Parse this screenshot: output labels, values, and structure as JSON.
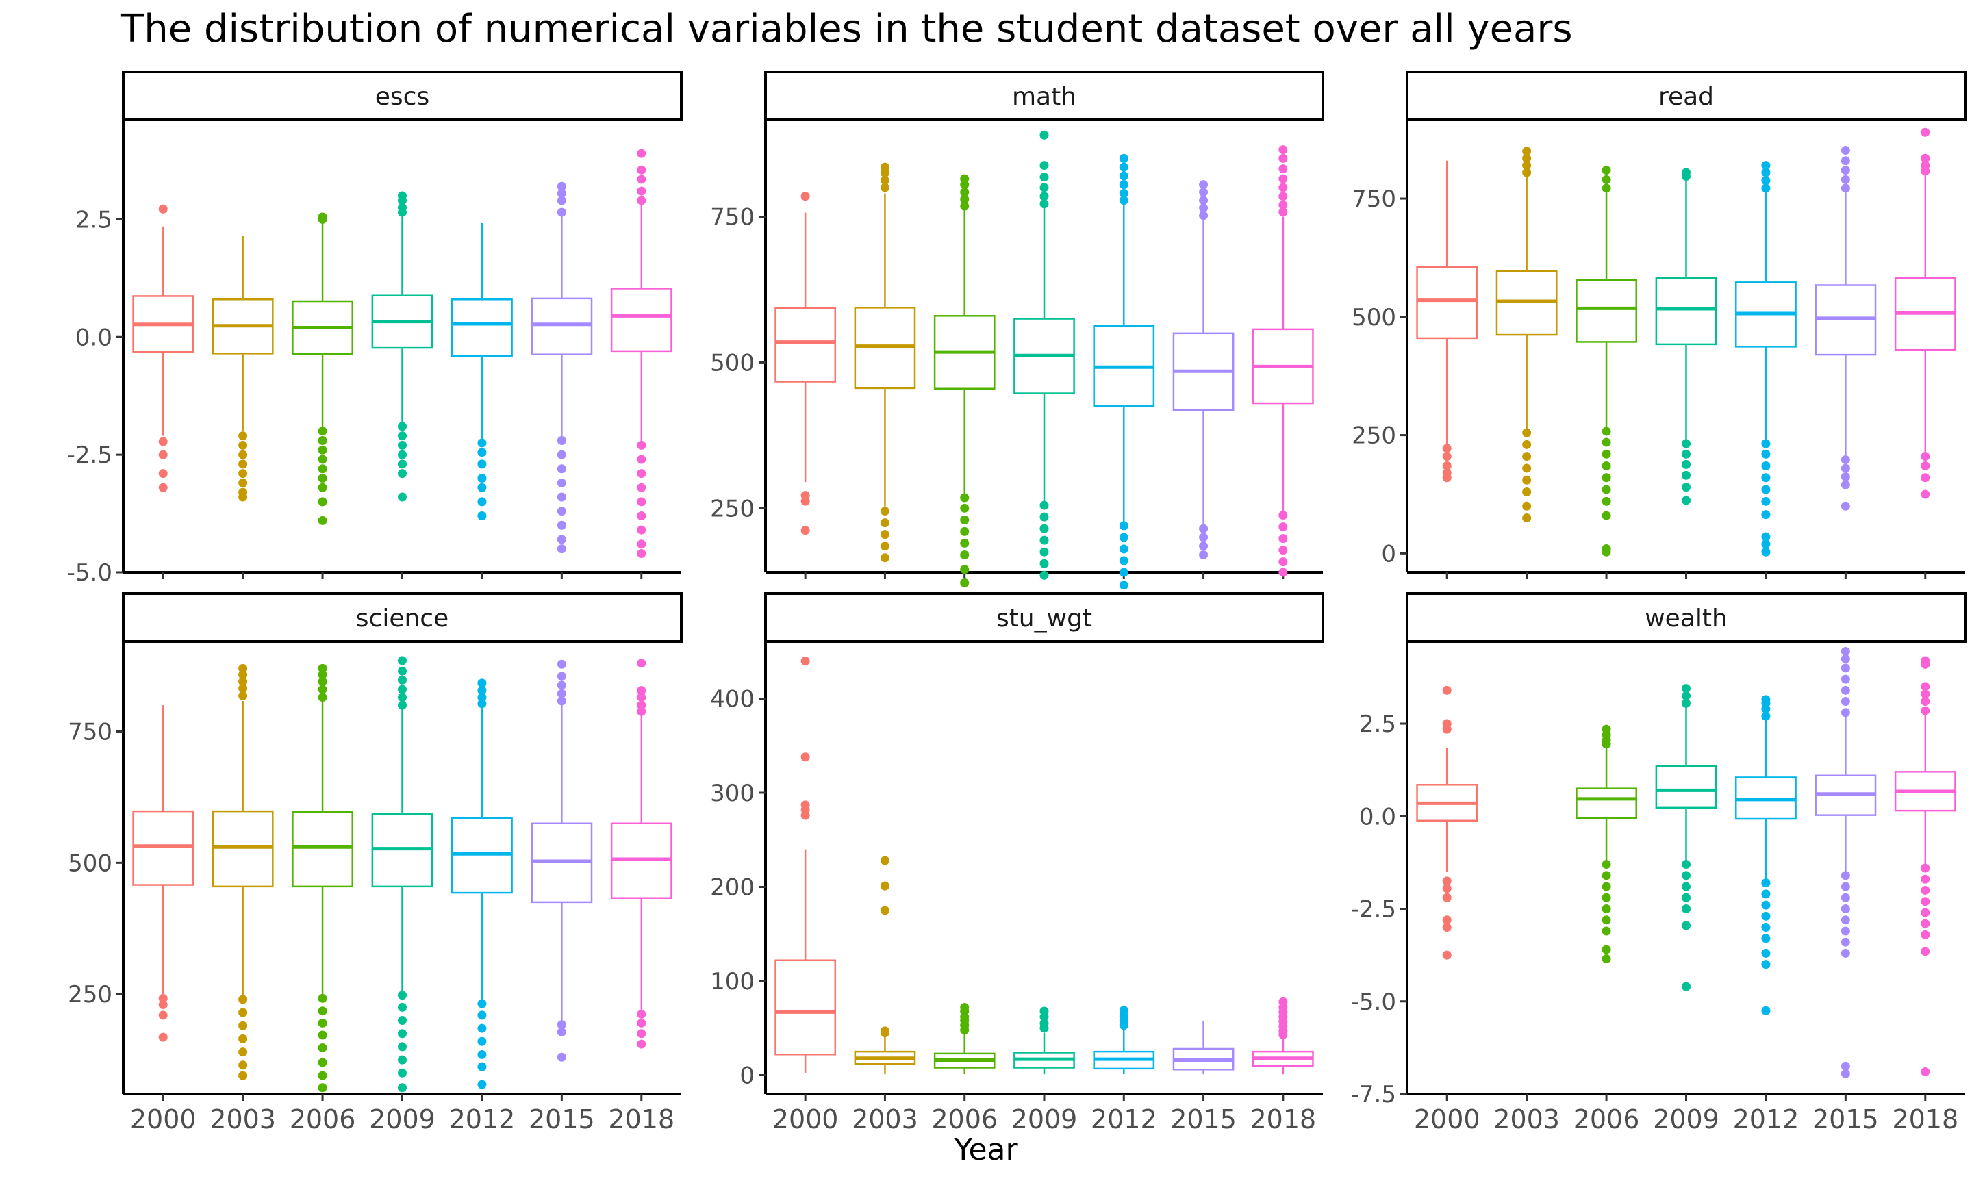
{
  "chart_data": {
    "type": "boxplot",
    "title": "The distribution of numerical variables in the student dataset over all years",
    "xlabel": "Year",
    "ylabel": "",
    "categories": [
      "2000",
      "2003",
      "2006",
      "2009",
      "2012",
      "2015",
      "2018"
    ],
    "colors": [
      "#F8766D",
      "#C49A00",
      "#53B400",
      "#00C094",
      "#00B6EB",
      "#A58AFF",
      "#FB61D7"
    ],
    "panels": [
      {
        "name": "escs",
        "ylim": [
          -5.0,
          4.6
        ],
        "yticks": [
          -5.0,
          -2.5,
          0.0,
          2.5
        ],
        "ytick_labels": [
          "-5.0",
          "-2.5",
          "0.0",
          "2.5"
        ],
        "boxes": [
          {
            "year": "2000",
            "q1": -0.32,
            "median": 0.27,
            "q3": 0.87,
            "whisker_low": -2.1,
            "whisker_high": 2.35,
            "outliers": [
              2.72,
              -2.22,
              -2.5,
              -2.9,
              -3.2
            ]
          },
          {
            "year": "2003",
            "q1": -0.35,
            "median": 0.24,
            "q3": 0.8,
            "whisker_low": -2.0,
            "whisker_high": 2.15,
            "outliers": [
              -2.1,
              -2.3,
              -2.5,
              -2.7,
              -2.9,
              -3.1,
              -3.3,
              -3.4
            ]
          },
          {
            "year": "2006",
            "q1": -0.36,
            "median": 0.2,
            "q3": 0.76,
            "whisker_low": -2.0,
            "whisker_high": 2.45,
            "outliers": [
              2.5,
              2.55,
              -2.0,
              -2.2,
              -2.4,
              -2.6,
              -2.8,
              -3.0,
              -3.2,
              -3.5,
              -3.9
            ]
          },
          {
            "year": "2009",
            "q1": -0.23,
            "median": 0.33,
            "q3": 0.88,
            "whisker_low": -1.9,
            "whisker_high": 2.6,
            "outliers": [
              2.65,
              2.75,
              2.9,
              3.0,
              -1.9,
              -2.1,
              -2.3,
              -2.5,
              -2.7,
              -2.9,
              -3.4
            ]
          },
          {
            "year": "2012",
            "q1": -0.4,
            "median": 0.28,
            "q3": 0.8,
            "whisker_low": -2.2,
            "whisker_high": 2.42,
            "outliers": [
              -2.25,
              -2.45,
              -2.7,
              -3.0,
              -3.2,
              -3.5,
              -3.8
            ]
          },
          {
            "year": "2015",
            "q1": -0.37,
            "median": 0.27,
            "q3": 0.82,
            "whisker_low": -2.2,
            "whisker_high": 2.6,
            "outliers": [
              2.65,
              2.9,
              3.05,
              3.2,
              -2.2,
              -2.5,
              -2.8,
              -3.1,
              -3.4,
              -3.7,
              -4.0,
              -4.3,
              -4.5
            ]
          },
          {
            "year": "2018",
            "q1": -0.3,
            "median": 0.45,
            "q3": 1.03,
            "whisker_low": -2.3,
            "whisker_high": 2.8,
            "outliers": [
              2.9,
              3.1,
              3.35,
              3.55,
              3.9,
              -2.3,
              -2.6,
              -2.9,
              -3.2,
              -3.5,
              -3.8,
              -4.1,
              -4.4,
              -4.6
            ]
          }
        ]
      },
      {
        "name": "math",
        "ylim": [
          140,
          915
        ],
        "yticks": [
          250,
          500,
          750
        ],
        "ytick_labels": [
          "250",
          "500",
          "750"
        ],
        "boxes": [
          {
            "year": "2000",
            "q1": 467,
            "median": 535,
            "q3": 593,
            "whisker_low": 295,
            "whisker_high": 757,
            "outliers": [
              785,
              272,
              262,
              212
            ]
          },
          {
            "year": "2003",
            "q1": 456,
            "median": 528,
            "q3": 594,
            "whisker_low": 253,
            "whisker_high": 790,
            "outliers": [
              800,
              812,
              825,
              835,
              245,
              225,
              205,
              185,
              165
            ]
          },
          {
            "year": "2006",
            "q1": 455,
            "median": 518,
            "q3": 580,
            "whisker_low": 270,
            "whisker_high": 762,
            "outliers": [
              768,
              780,
              792,
              805,
              815,
              268,
              250,
              230,
              210,
              190,
              170,
              145,
              122
            ]
          },
          {
            "year": "2009",
            "q1": 447,
            "median": 512,
            "q3": 575,
            "whisker_low": 257,
            "whisker_high": 765,
            "outliers": [
              772,
              785,
              800,
              818,
              838,
              890,
              255,
              235,
              215,
              195,
              175,
              155,
              135
            ]
          },
          {
            "year": "2012",
            "q1": 425,
            "median": 492,
            "q3": 563,
            "whisker_low": 222,
            "whisker_high": 770,
            "outliers": [
              778,
              790,
              805,
              820,
              835,
              850,
              220,
              200,
              180,
              160,
              140,
              118,
              92,
              75
            ]
          },
          {
            "year": "2015",
            "q1": 418,
            "median": 485,
            "q3": 550,
            "whisker_low": 220,
            "whisker_high": 746,
            "outliers": [
              752,
              765,
              778,
              792,
              805,
              215,
              200,
              185,
              170
            ]
          },
          {
            "year": "2018",
            "q1": 430,
            "median": 493,
            "q3": 557,
            "whisker_low": 240,
            "whisker_high": 750,
            "outliers": [
              758,
              770,
              785,
              800,
              815,
              832,
              850,
              865,
              238,
              218,
              198,
              178,
              158,
              140
            ]
          }
        ]
      },
      {
        "name": "read",
        "ylim": [
          -40,
          915
        ],
        "yticks": [
          0,
          250,
          500,
          750
        ],
        "ytick_labels": [
          "0",
          "250",
          "500",
          "750"
        ],
        "boxes": [
          {
            "year": "2000",
            "q1": 455,
            "median": 535,
            "q3": 605,
            "whisker_low": 232,
            "whisker_high": 830,
            "outliers": [
              222,
              205,
              185,
              170,
              160
            ]
          },
          {
            "year": "2003",
            "q1": 462,
            "median": 533,
            "q3": 597,
            "whisker_low": 262,
            "whisker_high": 795,
            "outliers": [
              805,
              820,
              835,
              850,
              255,
              230,
              205,
              180,
              155,
              130,
              100,
              75
            ]
          },
          {
            "year": "2006",
            "q1": 447,
            "median": 518,
            "q3": 578,
            "whisker_low": 262,
            "whisker_high": 767,
            "outliers": [
              772,
              790,
              810,
              258,
              235,
              210,
              185,
              160,
              135,
              110,
              80,
              10,
              3
            ]
          },
          {
            "year": "2009",
            "q1": 442,
            "median": 517,
            "q3": 582,
            "whisker_low": 235,
            "whisker_high": 790,
            "outliers": [
              797,
              805,
              232,
              210,
              188,
              165,
              140,
              112
            ]
          },
          {
            "year": "2012",
            "q1": 437,
            "median": 507,
            "q3": 573,
            "whisker_low": 238,
            "whisker_high": 765,
            "outliers": [
              772,
              788,
              805,
              820,
              232,
              210,
              185,
              160,
              135,
              110,
              82,
              35,
              20,
              3
            ]
          },
          {
            "year": "2015",
            "q1": 420,
            "median": 497,
            "q3": 567,
            "whisker_low": 200,
            "whisker_high": 765,
            "outliers": [
              772,
              790,
              810,
              830,
              852,
              198,
              180,
              162,
              145,
              100
            ]
          },
          {
            "year": "2018",
            "q1": 430,
            "median": 508,
            "q3": 582,
            "whisker_low": 210,
            "whisker_high": 800,
            "outliers": [
              808,
              820,
              835,
              890,
              205,
              185,
              160,
              125
            ]
          }
        ]
      },
      {
        "name": "science",
        "ylim": [
          60,
          920
        ],
        "yticks": [
          250,
          500,
          750
        ],
        "ytick_labels": [
          "250",
          "500",
          "750"
        ],
        "boxes": [
          {
            "year": "2000",
            "q1": 458,
            "median": 532,
            "q3": 598,
            "whisker_low": 250,
            "whisker_high": 800,
            "outliers": [
              242,
              230,
              210,
              168
            ]
          },
          {
            "year": "2003",
            "q1": 455,
            "median": 530,
            "q3": 598,
            "whisker_low": 247,
            "whisker_high": 808,
            "outliers": [
              818,
              832,
              845,
              858,
              870,
              240,
              215,
              190,
              165,
              140,
              115,
              95
            ]
          },
          {
            "year": "2006",
            "q1": 455,
            "median": 530,
            "q3": 597,
            "whisker_low": 248,
            "whisker_high": 808,
            "outliers": [
              815,
              830,
              845,
              858,
              870,
              242,
              218,
              195,
              172,
              148,
              120,
              95,
              72
            ]
          },
          {
            "year": "2009",
            "q1": 455,
            "median": 527,
            "q3": 593,
            "whisker_low": 252,
            "whisker_high": 795,
            "outliers": [
              800,
              815,
              830,
              848,
              865,
              885,
              248,
              225,
              200,
              175,
              150,
              125,
              100,
              72
            ]
          },
          {
            "year": "2012",
            "q1": 443,
            "median": 517,
            "q3": 585,
            "whisker_low": 238,
            "whisker_high": 797,
            "outliers": [
              803,
              815,
              828,
              842,
              232,
              210,
              185,
              160,
              135,
              112,
              78
            ]
          },
          {
            "year": "2015",
            "q1": 425,
            "median": 503,
            "q3": 575,
            "whisker_low": 198,
            "whisker_high": 800,
            "outliers": [
              808,
              822,
              838,
              855,
              878,
              192,
              178,
              130
            ]
          },
          {
            "year": "2018",
            "q1": 433,
            "median": 507,
            "q3": 575,
            "whisker_low": 218,
            "whisker_high": 780,
            "outliers": [
              788,
              800,
              815,
              828,
              880,
              212,
              195,
              175,
              155
            ]
          }
        ]
      },
      {
        "name": "stu_wgt",
        "ylim": [
          -20,
          460
        ],
        "yticks": [
          0,
          100,
          200,
          300,
          400
        ],
        "ytick_labels": [
          "0",
          "100",
          "200",
          "300",
          "400"
        ],
        "boxes": [
          {
            "year": "2000",
            "q1": 22,
            "median": 67,
            "q3": 122,
            "whisker_low": 2,
            "whisker_high": 240,
            "outliers": [
              440,
              338,
              287,
              282,
              276
            ]
          },
          {
            "year": "2003",
            "q1": 12,
            "median": 18,
            "q3": 25,
            "whisker_low": 1,
            "whisker_high": 42,
            "outliers": [
              47,
              45,
              228,
              201,
              175
            ]
          },
          {
            "year": "2006",
            "q1": 8,
            "median": 16,
            "q3": 23,
            "whisker_low": 1,
            "whisker_high": 45,
            "outliers": [
              48,
              53,
              58,
              62,
              68,
              72
            ]
          },
          {
            "year": "2009",
            "q1": 8,
            "median": 17,
            "q3": 24,
            "whisker_low": 1,
            "whisker_high": 45,
            "outliers": [
              50,
              55,
              62,
              68
            ]
          },
          {
            "year": "2012",
            "q1": 7,
            "median": 17,
            "q3": 25,
            "whisker_low": 1,
            "whisker_high": 48,
            "outliers": [
              53,
              58,
              63,
              69
            ]
          },
          {
            "year": "2015",
            "q1": 6,
            "median": 16,
            "q3": 28,
            "whisker_low": 1,
            "whisker_high": 58,
            "outliers": []
          },
          {
            "year": "2018",
            "q1": 10,
            "median": 18,
            "q3": 25,
            "whisker_low": 1,
            "whisker_high": 40,
            "outliers": [
              43,
              47,
              52,
              57,
              62,
              67,
              72,
              78
            ]
          }
        ]
      },
      {
        "name": "wealth",
        "ylim": [
          -7.5,
          4.7
        ],
        "yticks": [
          -7.5,
          -5.0,
          -2.5,
          0.0,
          2.5
        ],
        "ytick_labels": [
          "-7.5",
          "-5.0",
          "-2.5",
          "0.0",
          "2.5"
        ],
        "boxes": [
          {
            "year": "2000",
            "q1": -0.12,
            "median": 0.35,
            "q3": 0.85,
            "whisker_low": -1.5,
            "whisker_high": 1.85,
            "outliers": [
              2.35,
              2.5,
              3.4,
              -1.75,
              -1.95,
              -2.2,
              -2.8,
              -3.0,
              -3.75
            ]
          },
          {
            "year": "2003",
            "q1": null,
            "median": null,
            "q3": null,
            "whisker_low": null,
            "whisker_high": null,
            "outliers": []
          },
          {
            "year": "2006",
            "q1": -0.05,
            "median": 0.47,
            "q3": 0.75,
            "whisker_low": -1.25,
            "whisker_high": 1.85,
            "outliers": [
              1.95,
              2.05,
              2.2,
              2.35,
              -1.3,
              -1.6,
              -1.9,
              -2.2,
              -2.5,
              -2.8,
              -3.1,
              -3.6,
              -3.85
            ]
          },
          {
            "year": "2009",
            "q1": 0.23,
            "median": 0.7,
            "q3": 1.35,
            "whisker_low": -1.2,
            "whisker_high": 3.0,
            "outliers": [
              3.05,
              3.25,
              3.45,
              -1.3,
              -1.6,
              -1.9,
              -2.2,
              -2.5,
              -2.95,
              -4.6
            ]
          },
          {
            "year": "2012",
            "q1": -0.07,
            "median": 0.45,
            "q3": 1.05,
            "whisker_low": -1.75,
            "whisker_high": 2.6,
            "outliers": [
              2.7,
              2.9,
              3.05,
              3.15,
              -1.8,
              -2.1,
              -2.4,
              -2.7,
              -3.0,
              -3.3,
              -3.7,
              -4.0,
              -5.25
            ]
          },
          {
            "year": "2015",
            "q1": 0.03,
            "median": 0.6,
            "q3": 1.1,
            "whisker_low": -1.5,
            "whisker_high": 2.7,
            "outliers": [
              2.8,
              3.1,
              3.4,
              3.7,
              4.0,
              4.25,
              4.45,
              -1.6,
              -1.9,
              -2.2,
              -2.5,
              -2.8,
              -3.1,
              -3.4,
              -3.7,
              -6.75,
              -6.95
            ]
          },
          {
            "year": "2018",
            "q1": 0.15,
            "median": 0.67,
            "q3": 1.2,
            "whisker_low": -1.3,
            "whisker_high": 2.75,
            "outliers": [
              2.85,
              3.1,
              3.3,
              3.5,
              4.1,
              4.2,
              -1.4,
              -1.7,
              -2.0,
              -2.3,
              -2.6,
              -2.9,
              -3.2,
              -3.65,
              -6.9
            ]
          }
        ]
      }
    ]
  }
}
